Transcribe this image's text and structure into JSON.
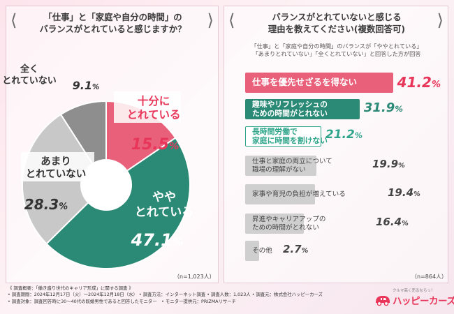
{
  "left": {
    "title_line1": "「仕事」と「家庭や自分の時間」の",
    "title_line2": "バランスがとれていると感じますか？",
    "respondents": "（n=1,023人）"
  },
  "right": {
    "title_line1": "バランスがとれていないと感じる",
    "title_line2": "理由を教えてください(複数回答可)",
    "note_line1": "「仕事」と「家庭や自分の時間」のバランスが「ややとれている」",
    "note_line2": "「あまりとれていない」「全くとれていない」と回答した方が回答",
    "respondents": "（n=864人）"
  },
  "chart_data": [
    {
      "type": "pie",
      "title": "「仕事」と「家庭や自分の時間」のバランスがとれていると感じますか？",
      "unit": "%",
      "slices": [
        {
          "label": "十分に\nとれている",
          "value": 15.5,
          "color": "#e8607a"
        },
        {
          "label": "やや\nとれている",
          "value": 47.1,
          "color": "#2b8a76"
        },
        {
          "label": "あまり\nとれていない",
          "value": 28.3,
          "color": "#c8c8c8"
        },
        {
          "label": "全く\nとれていない",
          "value": 9.1,
          "color": "#8e8e8e"
        }
      ]
    },
    {
      "type": "bar",
      "orientation": "horizontal",
      "title": "バランスがとれていないと感じる理由を教えてください(複数回答可)",
      "unit": "%",
      "xlim": [
        0,
        45
      ],
      "categories": [
        "仕事を優先せざるを得ない",
        "趣味やリフレッシュの\nための時間がとれない",
        "長時間労働で\n家庭に時間を割けない",
        "仕事と家庭の両立について\n職場の理解がない",
        "家事や育児の負担が増えている",
        "昇進やキャリアアップの\nための時間がとれない",
        "その他"
      ],
      "values": [
        41.2,
        31.9,
        21.2,
        19.9,
        19.4,
        16.4,
        2.7
      ],
      "colors": [
        "#e8607a",
        "#2b8a76",
        "#2ea58a",
        "#cfcfcf",
        "#cfcfcf",
        "#cfcfcf",
        "#cfcfcf"
      ]
    }
  ],
  "footer": {
    "line1": "《 調査概要：「働き盛り世代のキャリア形成」に関する調査 》",
    "line2": "• 調査期間：2024年12月17日（火）〜2024年12月18日（水） • 調査方法：インターネット調査 • 調査人数：1,023人 • 調査元：株式会社ハッピーカーズ",
    "line3": "• 調査対象：調査回答時に30〜40代の既婚男性であると回答したモニター　• モニター提供元：PRIZMAリサーチ"
  },
  "logo": {
    "tagline": "クルマ高く売るならっ！",
    "name": "ハッピーカーズ"
  }
}
